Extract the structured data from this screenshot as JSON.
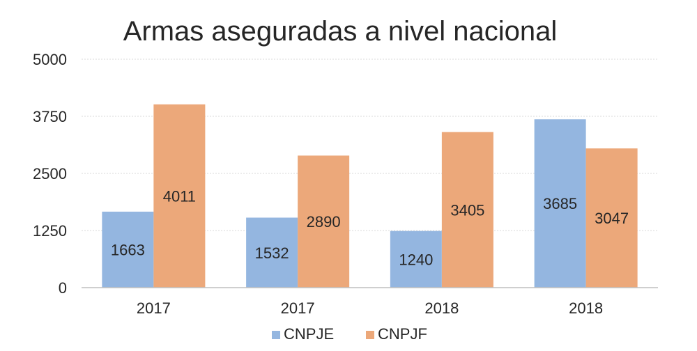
{
  "chart_data": {
    "type": "bar",
    "title": "Armas aseguradas a nivel nacional",
    "categories": [
      "2017",
      "2017",
      "2018",
      "2018"
    ],
    "series": [
      {
        "name": "CNPJE",
        "values": [
          1663,
          1532,
          1240,
          3685
        ],
        "color": "#94b6e0"
      },
      {
        "name": "CNPJF",
        "values": [
          4011,
          2890,
          3405,
          3047
        ],
        "color": "#eca87a"
      }
    ],
    "yticks": [
      0,
      1250,
      2500,
      3750,
      5000
    ],
    "ylim": [
      0,
      5000
    ],
    "grid": true,
    "legend_position": "bottom"
  }
}
